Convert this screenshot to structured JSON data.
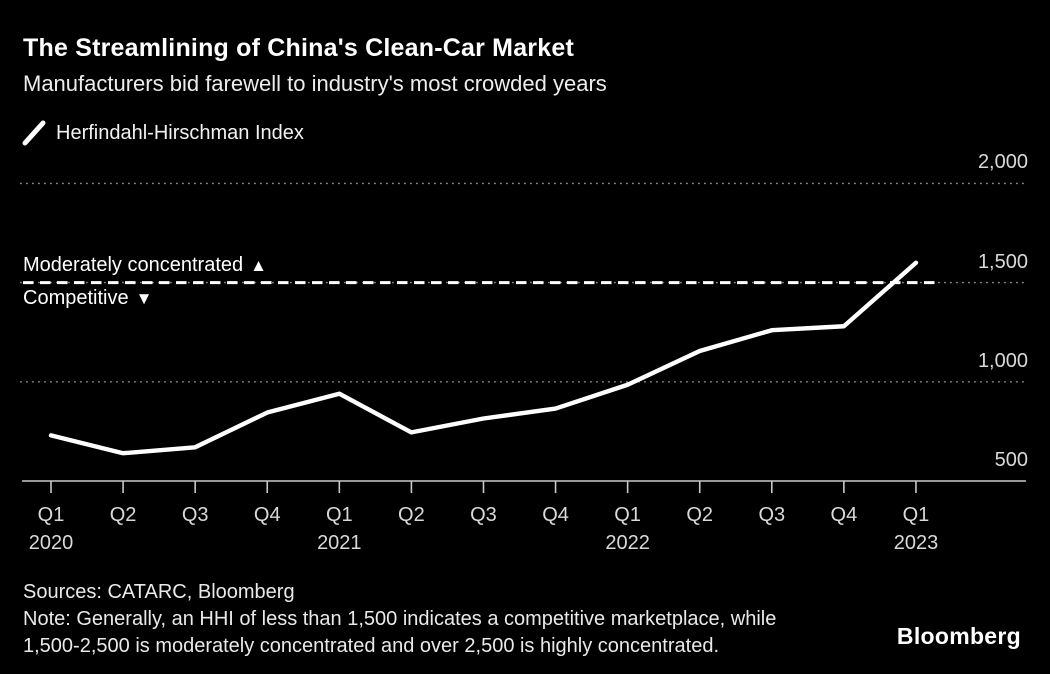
{
  "header": {
    "title": "The Streamlining of China's Clean-Car Market",
    "subtitle": "Manufacturers bid farewell to industry's most crowded years"
  },
  "annotations": {
    "above": {
      "label": "Moderately concentrated",
      "icon": "▲"
    },
    "below": {
      "label": "Competitive",
      "icon": "▼"
    }
  },
  "chart_data": {
    "type": "line",
    "series": [
      {
        "name": "Herfindahl-Hirschman Index",
        "values": [
          730,
          640,
          670,
          845,
          940,
          745,
          815,
          865,
          985,
          1155,
          1260,
          1280,
          1600
        ]
      }
    ],
    "categories": [
      "Q1 2020",
      "Q2 2020",
      "Q3 2020",
      "Q4 2020",
      "Q1 2021",
      "Q2 2021",
      "Q3 2021",
      "Q4 2021",
      "Q1 2022",
      "Q2 2022",
      "Q3 2022",
      "Q4 2022",
      "Q1 2023"
    ],
    "x_ticks": [
      {
        "q": "Q1",
        "year": "2020"
      },
      {
        "q": "Q2"
      },
      {
        "q": "Q3"
      },
      {
        "q": "Q4"
      },
      {
        "q": "Q1",
        "year": "2021"
      },
      {
        "q": "Q2"
      },
      {
        "q": "Q3"
      },
      {
        "q": "Q4"
      },
      {
        "q": "Q1",
        "year": "2022"
      },
      {
        "q": "Q2"
      },
      {
        "q": "Q3"
      },
      {
        "q": "Q4"
      },
      {
        "q": "Q1",
        "year": "2023"
      }
    ],
    "yticks": [
      {
        "value": 500,
        "label": "500"
      },
      {
        "value": 1000,
        "label": "1,000"
      },
      {
        "value": 1500,
        "label": "1,500"
      },
      {
        "value": 2000,
        "label": "2,000"
      }
    ],
    "gridline_values": [
      1000,
      1500,
      2000
    ],
    "threshold": {
      "value": 1500,
      "style": "dashed-white"
    },
    "ylim": [
      500,
      2000
    ],
    "xlabel": "",
    "ylabel": "",
    "grid": "dotted horizontal",
    "legend_position": "top-left",
    "line_color": "#ffffff"
  },
  "footer": {
    "sources": "Sources: CATARC, Bloomberg",
    "note_lines": [
      "Note: Generally, an HHI of less than 1,500 indicates a competitive marketplace, while",
      "1,500-2,500 is moderately concentrated and over 2,500 is highly concentrated."
    ],
    "brand": "Bloomberg"
  },
  "colors": {
    "background": "#000000",
    "title": "#ffffff",
    "line": "#ffffff",
    "threshold": "#ffffff",
    "axis_label": "#d9d9d9",
    "gridline": "#8c8c8c"
  }
}
